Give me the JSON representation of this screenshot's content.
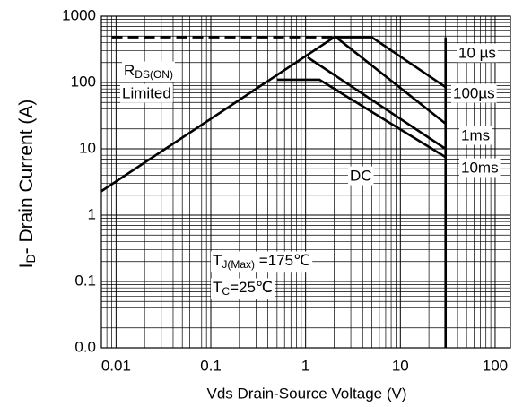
{
  "chart_data": {
    "type": "line",
    "x_label": "Vds Drain-Source Voltage (V)",
    "y_label": [
      "I",
      "D",
      "- Drain Current (A)"
    ],
    "log_x": true,
    "log_y": true,
    "grid": true,
    "minor_grid": true,
    "color": "#000000",
    "xlim": [
      0.007,
      145
    ],
    "ylim": [
      0.01,
      1000
    ],
    "xticks": [
      0.01,
      0.1,
      1,
      10,
      100
    ],
    "yticks": [
      1000,
      100,
      10,
      1,
      0.1,
      {
        "value": 0.01,
        "label": "0.0"
      }
    ],
    "series": [
      {
        "x": [
          0.007,
          2
        ],
        "y": [
          2.3,
          480
        ]
      },
      {
        "x": [
          0.009,
          2
        ],
        "y": [
          480,
          480
        ],
        "dashed": true
      },
      {
        "name": "10 µs",
        "x": [
          2,
          5,
          30
        ],
        "y": [
          480,
          480,
          85
        ]
      },
      {
        "name": "100µs",
        "x": [
          2.1,
          30
        ],
        "y": [
          480,
          24
        ]
      },
      {
        "name": "1ms",
        "x": [
          1.05,
          30
        ],
        "y": [
          240,
          10
        ]
      },
      {
        "name": "10ms",
        "x": [
          0.5,
          1.4,
          30
        ],
        "y": [
          110,
          110,
          7.5
        ]
      },
      {
        "x": [
          30,
          30
        ],
        "y": [
          480,
          0.01
        ]
      }
    ],
    "annotations": {
      "rds": [
        "R",
        "DS(ON)",
        "Limited"
      ],
      "dc": "DC",
      "tj": [
        "T",
        "J(Max)",
        " =175℃"
      ],
      "tc": [
        "T",
        "C",
        "=25℃"
      ]
    }
  }
}
